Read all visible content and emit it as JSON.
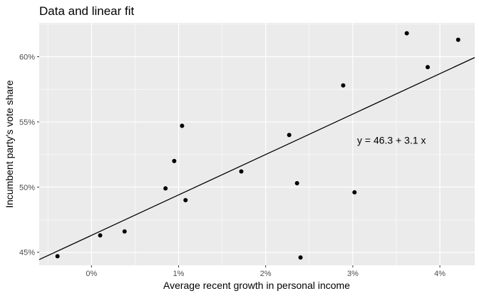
{
  "chart_data": {
    "type": "scatter",
    "title": "Data and linear fit",
    "xlabel": "Average recent growth in personal income",
    "ylabel": "Incumbent party's vote share",
    "xlim": [
      -0.6,
      4.4
    ],
    "ylim": [
      44.0,
      62.6
    ],
    "x_ticks": [
      0,
      1,
      2,
      3,
      4
    ],
    "x_tick_labels": [
      "0%",
      "1%",
      "2%",
      "3%",
      "4%"
    ],
    "y_ticks": [
      45,
      50,
      55,
      60
    ],
    "y_tick_labels": [
      "45%",
      "50%",
      "55%",
      "60%"
    ],
    "grid": true,
    "points": [
      {
        "x": -0.39,
        "y": 44.7
      },
      {
        "x": 0.1,
        "y": 46.3
      },
      {
        "x": 0.38,
        "y": 46.6
      },
      {
        "x": 0.85,
        "y": 49.9
      },
      {
        "x": 0.95,
        "y": 52.0
      },
      {
        "x": 1.04,
        "y": 54.7
      },
      {
        "x": 1.08,
        "y": 49.0
      },
      {
        "x": 1.72,
        "y": 51.2
      },
      {
        "x": 2.27,
        "y": 54.0
      },
      {
        "x": 2.36,
        "y": 50.3
      },
      {
        "x": 2.4,
        "y": 44.6
      },
      {
        "x": 2.89,
        "y": 57.8
      },
      {
        "x": 3.02,
        "y": 49.6
      },
      {
        "x": 3.62,
        "y": 61.8
      },
      {
        "x": 3.86,
        "y": 59.2
      },
      {
        "x": 4.21,
        "y": 61.3
      }
    ],
    "fit": {
      "intercept": 46.3,
      "slope": 3.1
    },
    "annotation": {
      "text": "y = 46.3 + 3.1 x",
      "x": 3.05,
      "y": 53.6
    },
    "colors": {
      "panel": "#ebebeb",
      "grid_major": "#ffffff",
      "points": "#000000",
      "fit_line": "#000000"
    }
  }
}
